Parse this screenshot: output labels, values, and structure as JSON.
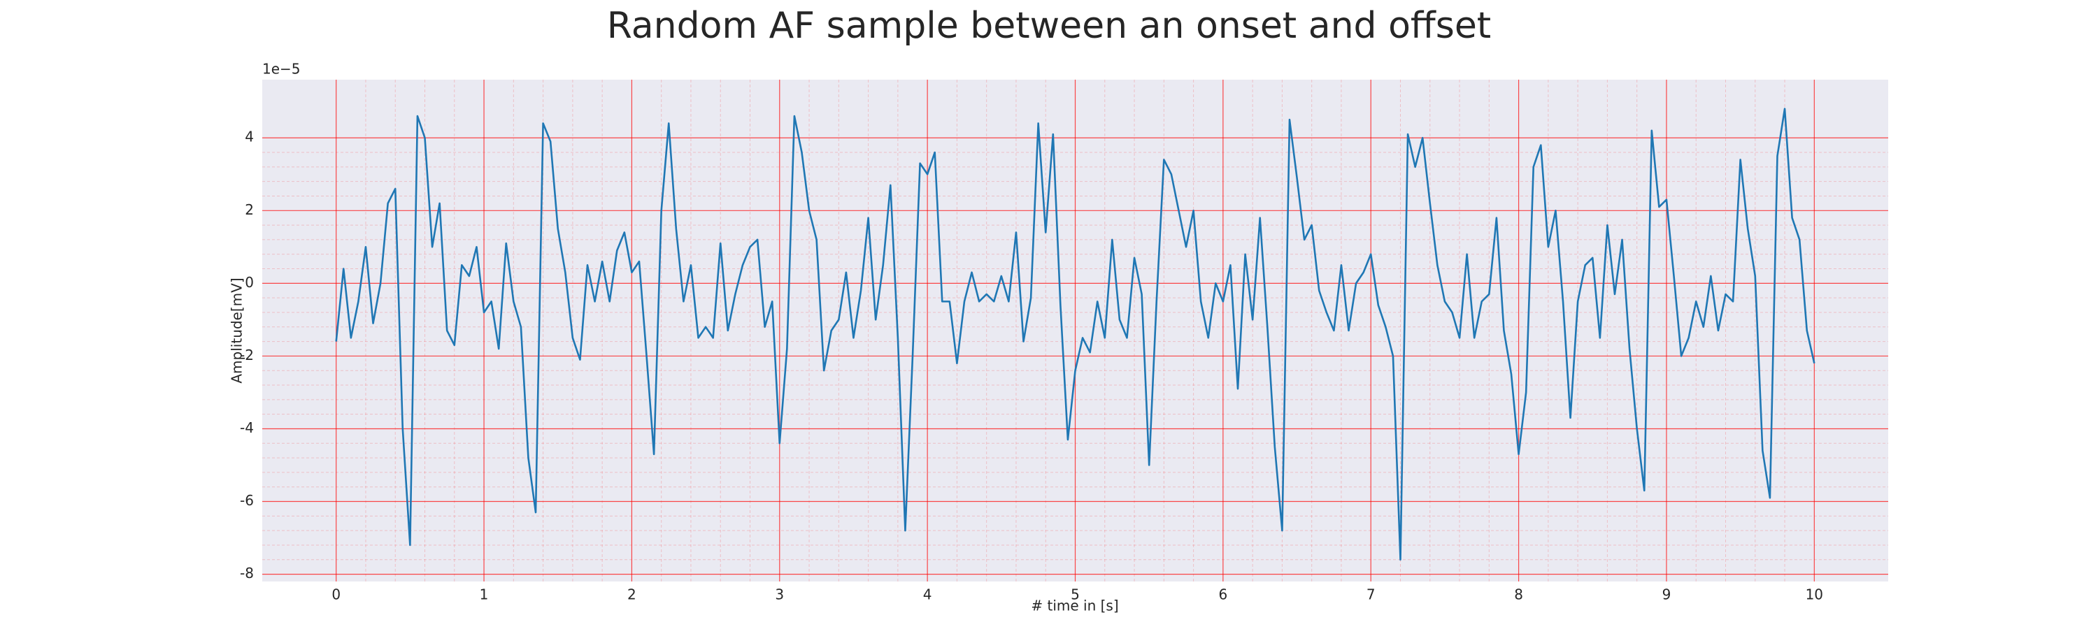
{
  "chart_data": {
    "type": "line",
    "title": "Random AF sample between an onset and offset",
    "x_label": "# time in [s]",
    "y_label": "Amplitude[mV]",
    "y_offset_text": "1e−5",
    "xlim": [
      -0.5,
      10.5
    ],
    "xticks": [
      0,
      1,
      2,
      3,
      4,
      5,
      6,
      7,
      8,
      9,
      10
    ],
    "ylim": [
      -8.2,
      5.6
    ],
    "yticks": [
      -8,
      -6,
      -4,
      -2,
      0,
      2,
      4
    ],
    "grid": true,
    "grid_color": "#ff0000",
    "minor_grid": true,
    "background": "#eaeaf2",
    "x": [
      0,
      0.05,
      0.1,
      0.15,
      0.2,
      0.25,
      0.3,
      0.35,
      0.4,
      0.45,
      0.5,
      0.55,
      0.6,
      0.65,
      0.7,
      0.75,
      0.8,
      0.85,
      0.9,
      0.95,
      1,
      1.05,
      1.1,
      1.15,
      1.2,
      1.25,
      1.3,
      1.35,
      1.4,
      1.45,
      1.5,
      1.55,
      1.6,
      1.65,
      1.7,
      1.75,
      1.8,
      1.85,
      1.9,
      1.95,
      2,
      2.05,
      2.1,
      2.15,
      2.2,
      2.25,
      2.3,
      2.35,
      2.4,
      2.45,
      2.5,
      2.55,
      2.6,
      2.65,
      2.7,
      2.75,
      2.8,
      2.85,
      2.9,
      2.95,
      3,
      3.05,
      3.1,
      3.15,
      3.2,
      3.25,
      3.3,
      3.35,
      3.4,
      3.45,
      3.5,
      3.55,
      3.6,
      3.65,
      3.7,
      3.75,
      3.8,
      3.85,
      3.9,
      3.95,
      4,
      4.05,
      4.1,
      4.15,
      4.2,
      4.25,
      4.3,
      4.35,
      4.4,
      4.45,
      4.5,
      4.55,
      4.6,
      4.65,
      4.7,
      4.75,
      4.8,
      4.85,
      4.9,
      4.95,
      5,
      5.05,
      5.1,
      5.15,
      5.2,
      5.25,
      5.3,
      5.35,
      5.4,
      5.45,
      5.5,
      5.55,
      5.6,
      5.65,
      5.7,
      5.75,
      5.8,
      5.85,
      5.9,
      5.95,
      6,
      6.05,
      6.1,
      6.15,
      6.2,
      6.25,
      6.3,
      6.35,
      6.4,
      6.45,
      6.5,
      6.55,
      6.6,
      6.65,
      6.7,
      6.75,
      6.8,
      6.85,
      6.9,
      6.95,
      7,
      7.05,
      7.1,
      7.15,
      7.2,
      7.25,
      7.3,
      7.35,
      7.4,
      7.45,
      7.5,
      7.55,
      7.6,
      7.65,
      7.7,
      7.75,
      7.8,
      7.85,
      7.9,
      7.95,
      8,
      8.05,
      8.1,
      8.15,
      8.2,
      8.25,
      8.3,
      8.35,
      8.4,
      8.45,
      8.5,
      8.55,
      8.6,
      8.65,
      8.7,
      8.75,
      8.8,
      8.85,
      8.9,
      8.95,
      9,
      9.05,
      9.1,
      9.15,
      9.2,
      9.25,
      9.3,
      9.35,
      9.4,
      9.45,
      9.5,
      9.55,
      9.6,
      9.65,
      9.7,
      9.75,
      9.8,
      9.85,
      9.9,
      9.95,
      10
    ],
    "series": [
      {
        "color": "#1f77b4",
        "values": [
          -1.6,
          0.4,
          -1.5,
          -0.5,
          1.0,
          -1.1,
          0,
          2.2,
          2.6,
          -4,
          -7.2,
          4.6,
          4.0,
          1.0,
          2.2,
          -1.3,
          -1.7,
          0.5,
          0.2,
          1.0,
          -0.8,
          -0.5,
          -1.8,
          1.1,
          -0.5,
          -1.2,
          -4.8,
          -6.3,
          4.4,
          3.9,
          1.5,
          0.3,
          -1.5,
          -2.1,
          0.5,
          -0.5,
          0.6,
          -0.5,
          0.9,
          1.4,
          0.3,
          0.6,
          -2.0,
          -4.7,
          2.0,
          4.4,
          1.5,
          -0.5,
          0.5,
          -1.5,
          -1.2,
          -1.5,
          1.1,
          -1.3,
          -0.3,
          0.5,
          1.0,
          1.2,
          -1.2,
          -0.5,
          -4.4,
          -1.8,
          4.6,
          3.6,
          2.0,
          1.2,
          -2.4,
          -1.3,
          -1.0,
          0.3,
          -1.5,
          -0.2,
          1.8,
          -1.0,
          0.5,
          2.7,
          -1.5,
          -6.8,
          -2.0,
          3.3,
          3.0,
          3.6,
          -0.5,
          -0.5,
          -2.2,
          -0.5,
          0.3,
          -0.5,
          -0.3,
          -0.5,
          0.2,
          -0.5,
          1.4,
          -1.6,
          -0.4,
          4.4,
          1.4,
          4.1,
          -0.6,
          -4.3,
          -2.4,
          -1.5,
          -1.9,
          -0.5,
          -1.5,
          1.2,
          -1.0,
          -1.5,
          0.7,
          -0.3,
          -5.0,
          -0.5,
          3.4,
          3.0,
          2.0,
          1.0,
          2.0,
          -0.5,
          -1.5,
          0,
          -0.5,
          0.5,
          -2.9,
          0.8,
          -1.0,
          1.8,
          -1.2,
          -4.5,
          -6.8,
          4.5,
          2.9,
          1.2,
          1.6,
          -0.2,
          -0.8,
          -1.3,
          0.5,
          -1.3,
          0,
          0.3,
          0.8,
          -0.6,
          -1.2,
          -2.0,
          -7.6,
          4.1,
          3.2,
          4.0,
          2.2,
          0.5,
          -0.5,
          -0.8,
          -1.5,
          0.8,
          -1.5,
          -0.5,
          -0.3,
          1.8,
          -1.3,
          -2.5,
          -4.7,
          -3.0,
          3.2,
          3.8,
          1.0,
          2.0,
          -0.5,
          -3.7,
          -0.5,
          0.5,
          0.7,
          -1.5,
          1.6,
          -0.3,
          1.2,
          -1.8,
          -4.0,
          -5.7,
          4.2,
          2.1,
          2.3,
          0.2,
          -2.0,
          -1.5,
          -0.5,
          -1.2,
          0.2,
          -1.3,
          -0.3,
          -0.5,
          3.4,
          1.5,
          0.2,
          -4.6,
          -5.9,
          3.5,
          4.8,
          1.8,
          1.2,
          -1.3,
          -2.2
        ]
      }
    ]
  }
}
